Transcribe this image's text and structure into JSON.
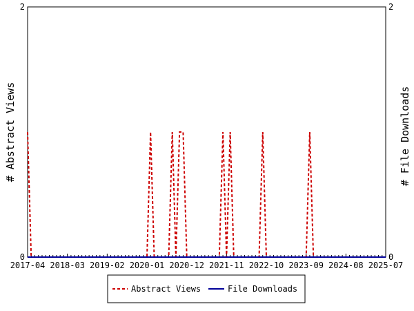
{
  "chart_data": {
    "type": "line",
    "title": "",
    "xlabel": "",
    "ylabel_left": "# Abstract Views",
    "ylabel_right": "# File Downloads",
    "x_ticks": [
      "2017-04",
      "2018-03",
      "2019-02",
      "2020-01",
      "2020-12",
      "2021-11",
      "2022-10",
      "2023-09",
      "2024-08",
      "2025-07"
    ],
    "x_range": [
      "2017-04",
      "2025-07"
    ],
    "ylim_left": [
      0,
      2
    ],
    "ylim_right": [
      0,
      2
    ],
    "y_ticks_left": [
      "0",
      "2"
    ],
    "y_ticks_right": [
      "0",
      "2"
    ],
    "grid": false,
    "legend_position": "bottom",
    "series": [
      {
        "name": "Abstract Views",
        "axis": "left",
        "color": "#cc0000",
        "style": "dashed",
        "points": [
          [
            "2017-04",
            1
          ],
          [
            "2017-05",
            0
          ],
          [
            "2020-01",
            0
          ],
          [
            "2020-02",
            1
          ],
          [
            "2020-03",
            0
          ],
          [
            "2020-07",
            0
          ],
          [
            "2020-08",
            1
          ],
          [
            "2020-09",
            0
          ],
          [
            "2020-10",
            1
          ],
          [
            "2020-11",
            1
          ],
          [
            "2020-12",
            0
          ],
          [
            "2021-09",
            0
          ],
          [
            "2021-10",
            1
          ],
          [
            "2021-11",
            0
          ],
          [
            "2021-12",
            1
          ],
          [
            "2022-01",
            0
          ],
          [
            "2022-08",
            0
          ],
          [
            "2022-09",
            1
          ],
          [
            "2022-10",
            0
          ],
          [
            "2023-09",
            0
          ],
          [
            "2023-10",
            1
          ],
          [
            "2023-11",
            0
          ]
        ]
      },
      {
        "name": "File Downloads",
        "axis": "right",
        "color": "#000099",
        "style": "solid",
        "points": [
          [
            "2017-04",
            0
          ],
          [
            "2025-07",
            0
          ]
        ]
      }
    ]
  }
}
